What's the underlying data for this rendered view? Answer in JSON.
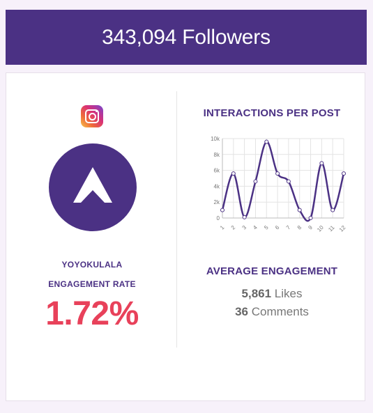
{
  "header": {
    "followers_text": "343,094 Followers"
  },
  "colors": {
    "brand": "#4b3184",
    "rate": "#e8415a",
    "line": "#4b3184"
  },
  "profile": {
    "platform_icon": "instagram-icon",
    "avatar_icon": "triangle-logo-icon",
    "username": "YOYOKULALA",
    "engagement_rate_label": "ENGAGEMENT RATE",
    "engagement_rate_value": "1.72%"
  },
  "chart_data": {
    "type": "line",
    "title": "INTERACTIONS PER POST",
    "x": [
      "1",
      "2",
      "3",
      "4",
      "5",
      "6",
      "7",
      "8",
      "9",
      "10",
      "11",
      "12"
    ],
    "y": [
      1000,
      5600,
      100,
      4600,
      9600,
      5600,
      4600,
      1000,
      0,
      6900,
      1000,
      5600
    ],
    "ylim": [
      0,
      10000
    ],
    "yticks": [
      0,
      2000,
      4000,
      6000,
      8000,
      10000
    ],
    "ytick_labels": [
      "0",
      "2k",
      "4k",
      "6k",
      "8k",
      "10k"
    ],
    "grid": true,
    "smooth": true
  },
  "engagement": {
    "title": "AVERAGE ENGAGEMENT",
    "likes_value": "5,861",
    "likes_label": "Likes",
    "comments_value": "36",
    "comments_label": "Comments"
  }
}
